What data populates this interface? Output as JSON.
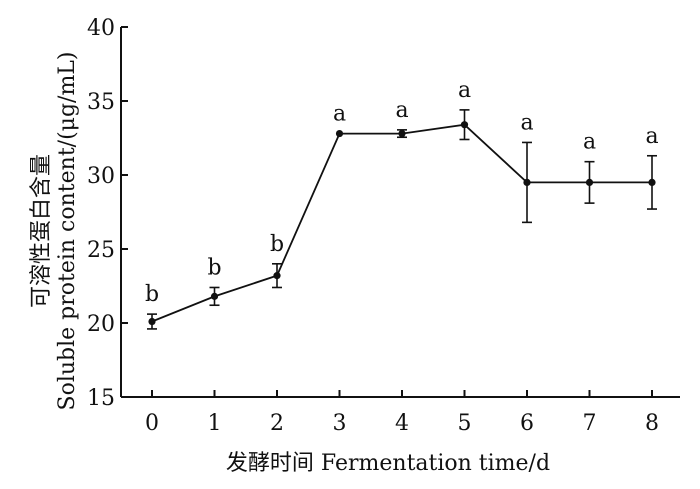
{
  "chart_data": {
    "type": "line",
    "xlabel": "发酵时间 Fermentation time/d",
    "ylabel_cn": "可溶性蛋白含量",
    "ylabel_en": "Soluble protein content/(μg/mL)",
    "x": [
      0,
      1,
      2,
      3,
      4,
      5,
      6,
      7,
      8
    ],
    "y": [
      20.1,
      21.8,
      23.2,
      32.8,
      32.8,
      33.4,
      29.5,
      29.5,
      29.5
    ],
    "error": [
      0.5,
      0.6,
      0.8,
      0.0,
      0.25,
      1.0,
      2.7,
      1.4,
      1.8
    ],
    "significance": [
      "b",
      "b",
      "b",
      "a",
      "a",
      "a",
      "a",
      "a",
      "a"
    ],
    "xlim": [
      0,
      8
    ],
    "ylim": [
      15,
      40
    ],
    "yticks": [
      15,
      20,
      25,
      30,
      35,
      40
    ],
    "xticks": [
      0,
      1,
      2,
      3,
      4,
      5,
      6,
      7,
      8
    ],
    "grid": false,
    "legend": "none"
  }
}
